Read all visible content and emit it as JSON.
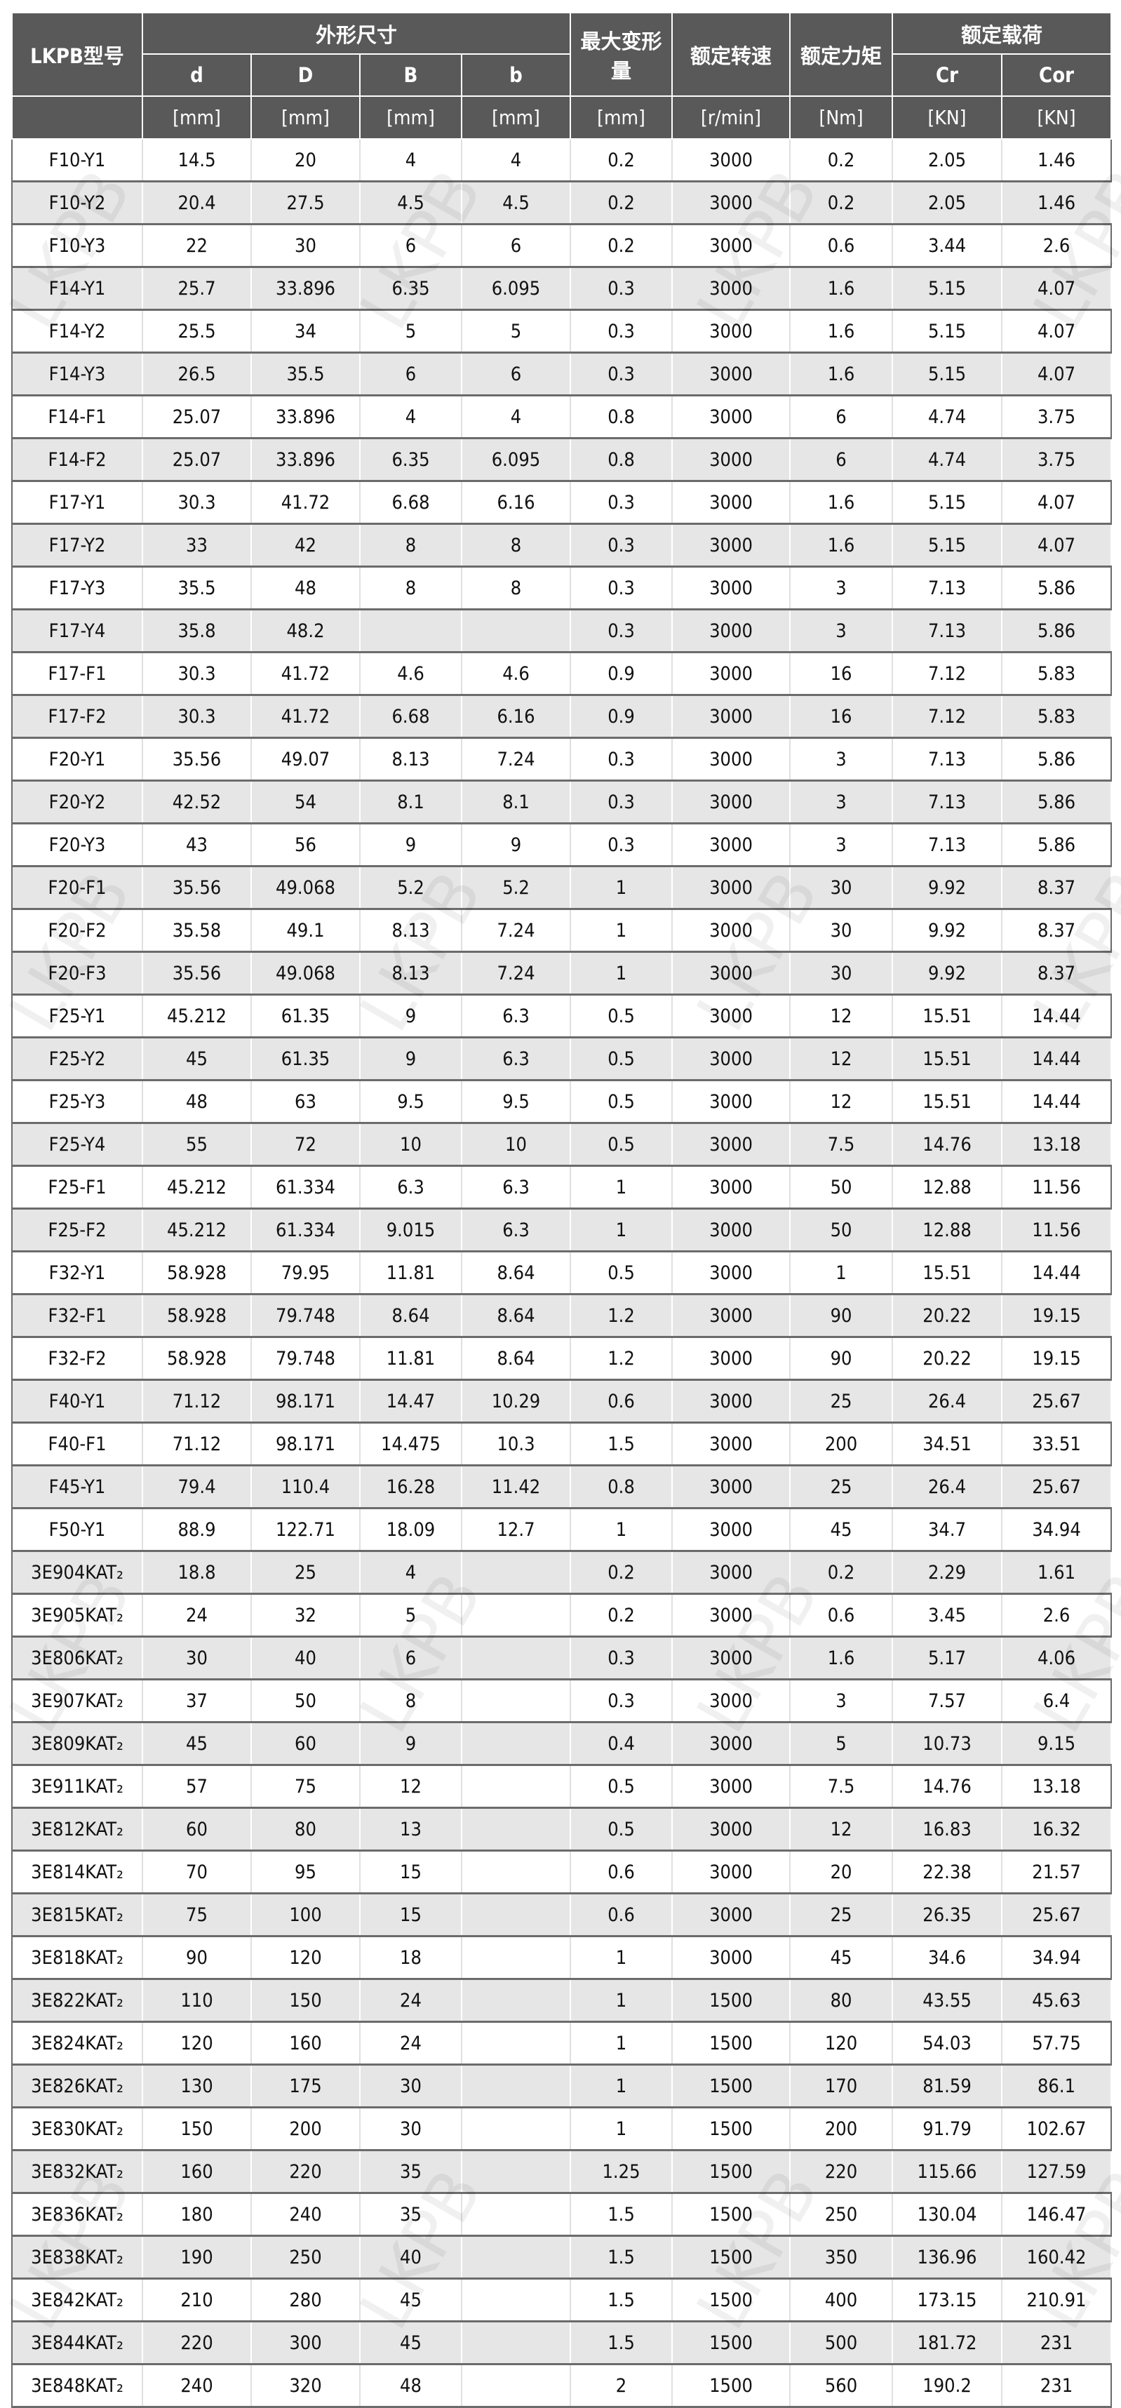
{
  "watermark": "LKPB",
  "header": {
    "model": "LKPB型号",
    "dims_group": "外形尺寸",
    "d": "d",
    "D": "D",
    "B": "B",
    "b": "b",
    "max_deform": "最大变形量",
    "rated_speed": "额定转速",
    "rated_torque": "额定力矩",
    "rated_load": "额定载荷",
    "Cr": "Cr",
    "Cor": "Cor",
    "units": [
      "[mm]",
      "[mm]",
      "[mm]",
      "[mm]",
      "[mm]",
      "[r/min]",
      "[Nm]",
      "[KN]",
      "[KN]"
    ]
  },
  "rows": [
    [
      "F10-Y1",
      "14.5",
      "20",
      "4",
      "4",
      "0.2",
      "3000",
      "0.2",
      "2.05",
      "1.46"
    ],
    [
      "F10-Y2",
      "20.4",
      "27.5",
      "4.5",
      "4.5",
      "0.2",
      "3000",
      "0.2",
      "2.05",
      "1.46"
    ],
    [
      "F10-Y3",
      "22",
      "30",
      "6",
      "6",
      "0.2",
      "3000",
      "0.6",
      "3.44",
      "2.6"
    ],
    [
      "F14-Y1",
      "25.7",
      "33.896",
      "6.35",
      "6.095",
      "0.3",
      "3000",
      "1.6",
      "5.15",
      "4.07"
    ],
    [
      "F14-Y2",
      "25.5",
      "34",
      "5",
      "5",
      "0.3",
      "3000",
      "1.6",
      "5.15",
      "4.07"
    ],
    [
      "F14-Y3",
      "26.5",
      "35.5",
      "6",
      "6",
      "0.3",
      "3000",
      "1.6",
      "5.15",
      "4.07"
    ],
    [
      "F14-F1",
      "25.07",
      "33.896",
      "4",
      "4",
      "0.8",
      "3000",
      "6",
      "4.74",
      "3.75"
    ],
    [
      "F14-F2",
      "25.07",
      "33.896",
      "6.35",
      "6.095",
      "0.8",
      "3000",
      "6",
      "4.74",
      "3.75"
    ],
    [
      "F17-Y1",
      "30.3",
      "41.72",
      "6.68",
      "6.16",
      "0.3",
      "3000",
      "1.6",
      "5.15",
      "4.07"
    ],
    [
      "F17-Y2",
      "33",
      "42",
      "8",
      "8",
      "0.3",
      "3000",
      "1.6",
      "5.15",
      "4.07"
    ],
    [
      "F17-Y3",
      "35.5",
      "48",
      "8",
      "8",
      "0.3",
      "3000",
      "3",
      "7.13",
      "5.86"
    ],
    [
      "F17-Y4",
      "35.8",
      "48.2",
      "",
      "",
      "0.3",
      "3000",
      "3",
      "7.13",
      "5.86"
    ],
    [
      "F17-F1",
      "30.3",
      "41.72",
      "4.6",
      "4.6",
      "0.9",
      "3000",
      "16",
      "7.12",
      "5.83"
    ],
    [
      "F17-F2",
      "30.3",
      "41.72",
      "6.68",
      "6.16",
      "0.9",
      "3000",
      "16",
      "7.12",
      "5.83"
    ],
    [
      "F20-Y1",
      "35.56",
      "49.07",
      "8.13",
      "7.24",
      "0.3",
      "3000",
      "3",
      "7.13",
      "5.86"
    ],
    [
      "F20-Y2",
      "42.52",
      "54",
      "8.1",
      "8.1",
      "0.3",
      "3000",
      "3",
      "7.13",
      "5.86"
    ],
    [
      "F20-Y3",
      "43",
      "56",
      "9",
      "9",
      "0.3",
      "3000",
      "3",
      "7.13",
      "5.86"
    ],
    [
      "F20-F1",
      "35.56",
      "49.068",
      "5.2",
      "5.2",
      "1",
      "3000",
      "30",
      "9.92",
      "8.37"
    ],
    [
      "F20-F2",
      "35.58",
      "49.1",
      "8.13",
      "7.24",
      "1",
      "3000",
      "30",
      "9.92",
      "8.37"
    ],
    [
      "F20-F3",
      "35.56",
      "49.068",
      "8.13",
      "7.24",
      "1",
      "3000",
      "30",
      "9.92",
      "8.37"
    ],
    [
      "F25-Y1",
      "45.212",
      "61.35",
      "9",
      "6.3",
      "0.5",
      "3000",
      "12",
      "15.51",
      "14.44"
    ],
    [
      "F25-Y2",
      "45",
      "61.35",
      "9",
      "6.3",
      "0.5",
      "3000",
      "12",
      "15.51",
      "14.44"
    ],
    [
      "F25-Y3",
      "48",
      "63",
      "9.5",
      "9.5",
      "0.5",
      "3000",
      "12",
      "15.51",
      "14.44"
    ],
    [
      "F25-Y4",
      "55",
      "72",
      "10",
      "10",
      "0.5",
      "3000",
      "7.5",
      "14.76",
      "13.18"
    ],
    [
      "F25-F1",
      "45.212",
      "61.334",
      "6.3",
      "6.3",
      "1",
      "3000",
      "50",
      "12.88",
      "11.56"
    ],
    [
      "F25-F2",
      "45.212",
      "61.334",
      "9.015",
      "6.3",
      "1",
      "3000",
      "50",
      "12.88",
      "11.56"
    ],
    [
      "F32-Y1",
      "58.928",
      "79.95",
      "11.81",
      "8.64",
      "0.5",
      "3000",
      "1",
      "15.51",
      "14.44"
    ],
    [
      "F32-F1",
      "58.928",
      "79.748",
      "8.64",
      "8.64",
      "1.2",
      "3000",
      "90",
      "20.22",
      "19.15"
    ],
    [
      "F32-F2",
      "58.928",
      "79.748",
      "11.81",
      "8.64",
      "1.2",
      "3000",
      "90",
      "20.22",
      "19.15"
    ],
    [
      "F40-Y1",
      "71.12",
      "98.171",
      "14.47",
      "10.29",
      "0.6",
      "3000",
      "25",
      "26.4",
      "25.67"
    ],
    [
      "F40-F1",
      "71.12",
      "98.171",
      "14.475",
      "10.3",
      "1.5",
      "3000",
      "200",
      "34.51",
      "33.51"
    ],
    [
      "F45-Y1",
      "79.4",
      "110.4",
      "16.28",
      "11.42",
      "0.8",
      "3000",
      "25",
      "26.4",
      "25.67"
    ],
    [
      "F50-Y1",
      "88.9",
      "122.71",
      "18.09",
      "12.7",
      "1",
      "3000",
      "45",
      "34.7",
      "34.94"
    ],
    [
      "3E904KAT₂",
      "18.8",
      "25",
      "4",
      "",
      "0.2",
      "3000",
      "0.2",
      "2.29",
      "1.61"
    ],
    [
      "3E905KAT₂",
      "24",
      "32",
      "5",
      "",
      "0.2",
      "3000",
      "0.6",
      "3.45",
      "2.6"
    ],
    [
      "3E806KAT₂",
      "30",
      "40",
      "6",
      "",
      "0.3",
      "3000",
      "1.6",
      "5.17",
      "4.06"
    ],
    [
      "3E907KAT₂",
      "37",
      "50",
      "8",
      "",
      "0.3",
      "3000",
      "3",
      "7.57",
      "6.4"
    ],
    [
      "3E809KAT₂",
      "45",
      "60",
      "9",
      "",
      "0.4",
      "3000",
      "5",
      "10.73",
      "9.15"
    ],
    [
      "3E911KAT₂",
      "57",
      "75",
      "12",
      "",
      "0.5",
      "3000",
      "7.5",
      "14.76",
      "13.18"
    ],
    [
      "3E812KAT₂",
      "60",
      "80",
      "13",
      "",
      "0.5",
      "3000",
      "12",
      "16.83",
      "16.32"
    ],
    [
      "3E814KAT₂",
      "70",
      "95",
      "15",
      "",
      "0.6",
      "3000",
      "20",
      "22.38",
      "21.57"
    ],
    [
      "3E815KAT₂",
      "75",
      "100",
      "15",
      "",
      "0.6",
      "3000",
      "25",
      "26.35",
      "25.67"
    ],
    [
      "3E818KAT₂",
      "90",
      "120",
      "18",
      "",
      "1",
      "3000",
      "45",
      "34.6",
      "34.94"
    ],
    [
      "3E822KAT₂",
      "110",
      "150",
      "24",
      "",
      "1",
      "1500",
      "80",
      "43.55",
      "45.63"
    ],
    [
      "3E824KAT₂",
      "120",
      "160",
      "24",
      "",
      "1",
      "1500",
      "120",
      "54.03",
      "57.75"
    ],
    [
      "3E826KAT₂",
      "130",
      "175",
      "30",
      "",
      "1",
      "1500",
      "170",
      "81.59",
      "86.1"
    ],
    [
      "3E830KAT₂",
      "150",
      "200",
      "30",
      "",
      "1",
      "1500",
      "200",
      "91.79",
      "102.67"
    ],
    [
      "3E832KAT₂",
      "160",
      "220",
      "35",
      "",
      "1.25",
      "1500",
      "220",
      "115.66",
      "127.59"
    ],
    [
      "3E836KAT₂",
      "180",
      "240",
      "35",
      "",
      "1.5",
      "1500",
      "250",
      "130.04",
      "146.47"
    ],
    [
      "3E838KAT₂",
      "190",
      "250",
      "40",
      "",
      "1.5",
      "1500",
      "350",
      "136.96",
      "160.42"
    ],
    [
      "3E842KAT₂",
      "210",
      "280",
      "45",
      "",
      "1.5",
      "1500",
      "400",
      "173.15",
      "210.91"
    ],
    [
      "3E844KAT₂",
      "220",
      "300",
      "45",
      "",
      "1.5",
      "1500",
      "500",
      "181.72",
      "231"
    ],
    [
      "3E848KAT₂",
      "240",
      "320",
      "48",
      "",
      "2",
      "1500",
      "560",
      "190.2",
      "231"
    ]
  ]
}
